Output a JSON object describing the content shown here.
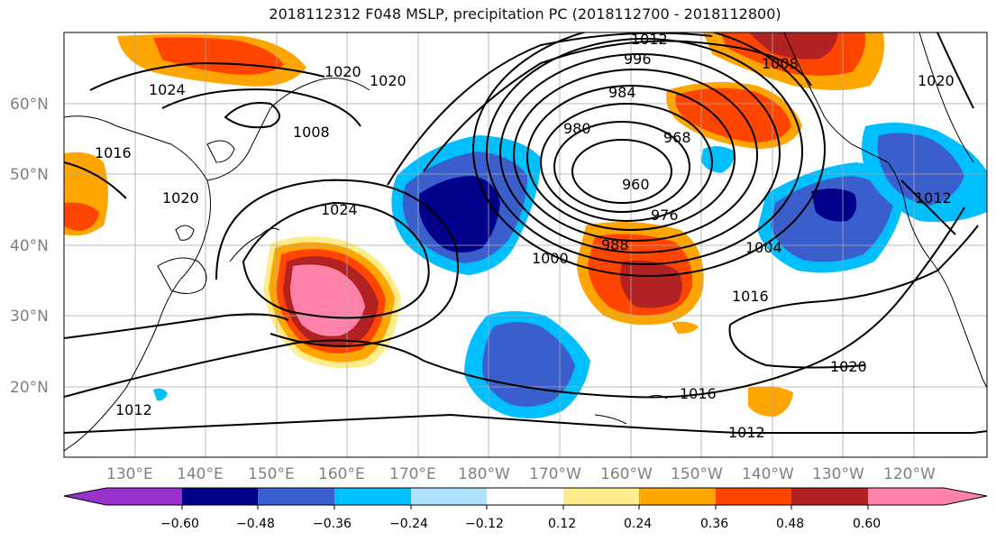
{
  "title": "2018112312 F048 MSLP, precipitation PC (2018112700 - 2018112800)",
  "map": {
    "lat_labels": [
      "60°N",
      "50°N",
      "40°N",
      "30°N",
      "20°N"
    ],
    "lon_labels": [
      "130°E",
      "140°E",
      "150°E",
      "160°E",
      "170°E",
      "180°W",
      "170°W",
      "160°W",
      "150°W",
      "140°W",
      "130°W",
      "120°W"
    ],
    "isobar_labels": [
      "1012",
      "996",
      "984",
      "980",
      "968",
      "960",
      "976",
      "988",
      "1000",
      "1004",
      "1016",
      "1020",
      "1016",
      "1012",
      "1024",
      "1020",
      "1020",
      "1008",
      "1024",
      "1016",
      "1020",
      "1012",
      "1008",
      "1012",
      "1020"
    ]
  },
  "colorbar": {
    "tick_labels": [
      "−0.60",
      "−0.48",
      "−0.36",
      "−0.24",
      "−0.12",
      "0.12",
      "0.24",
      "0.36",
      "0.48",
      "0.60"
    ],
    "colors": [
      "#9932cc",
      "#00008b",
      "#3a5fcd",
      "#00bfff",
      "#b0e2ff",
      "#ffffff",
      "#ffec8b",
      "#ffa500",
      "#ff4500",
      "#b22222",
      "#ff82ab"
    ]
  },
  "anomaly_colors": {
    "neg3": "#00008b",
    "neg2": "#3a5fcd",
    "neg1": "#00bfff",
    "neg0": "#b0e2ff",
    "pos0": "#ffec8b",
    "pos1": "#ffa500",
    "pos2": "#ff4500",
    "pos3": "#b22222",
    "pos4": "#ff82ab"
  }
}
